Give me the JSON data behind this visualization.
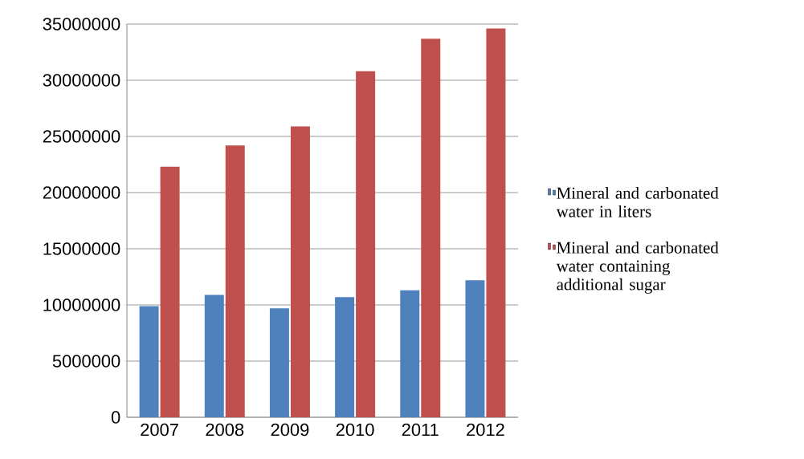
{
  "chart_data": {
    "type": "bar",
    "categories": [
      "2007",
      "2008",
      "2009",
      "2010",
      "2011",
      "2012"
    ],
    "series": [
      {
        "name": "Mineral and carbonated water in liters",
        "color": "#4f81bd",
        "values": [
          9900000,
          10900000,
          9700000,
          10700000,
          11300000,
          12200000
        ]
      },
      {
        "name": "Mineral and carbonated water containing additional sugar",
        "color": "#c0504d",
        "values": [
          22300000,
          24200000,
          25900000,
          30800000,
          33700000,
          34600000
        ]
      }
    ],
    "ylim": [
      0,
      35000000
    ],
    "yticks": [
      0,
      5000000,
      10000000,
      15000000,
      20000000,
      25000000,
      30000000,
      35000000
    ],
    "grid": "y",
    "legend": "right"
  }
}
